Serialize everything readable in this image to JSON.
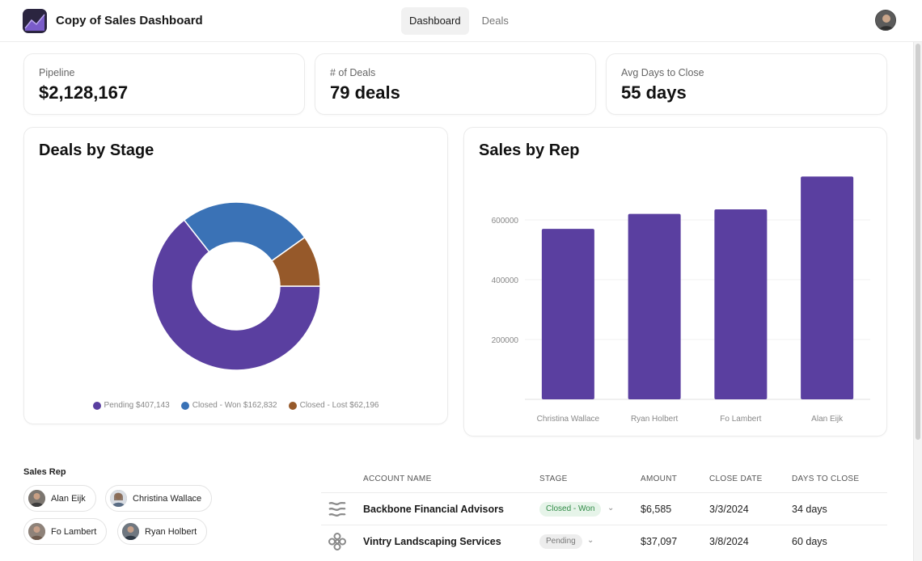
{
  "app": {
    "title": "Copy of Sales Dashboard"
  },
  "nav": {
    "tabs": [
      {
        "label": "Dashboard",
        "active": true
      },
      {
        "label": "Deals",
        "active": false
      }
    ]
  },
  "kpis": [
    {
      "label": "Pipeline",
      "value": "$2,128,167"
    },
    {
      "label": "# of Deals",
      "value": "79 deals"
    },
    {
      "label": "Avg Days to Close",
      "value": "55 days"
    }
  ],
  "deals_by_stage": {
    "title": "Deals by Stage",
    "legend": [
      {
        "label": "Pending $407,143",
        "color": "#5a3fa0"
      },
      {
        "label": "Closed - Won $162,832",
        "color": "#3a72b6"
      },
      {
        "label": "Closed - Lost $62,196",
        "color": "#96592a"
      }
    ]
  },
  "sales_by_rep": {
    "title": "Sales by Rep"
  },
  "chart_data": [
    {
      "type": "pie",
      "title": "Deals by Stage",
      "categories": [
        "Pending",
        "Closed - Won",
        "Closed - Lost"
      ],
      "values": [
        407143,
        162832,
        62196
      ],
      "colors": [
        "#5a3fa0",
        "#3a72b6",
        "#96592a"
      ],
      "donut": true,
      "legend_position": "bottom"
    },
    {
      "type": "bar",
      "title": "Sales by Rep",
      "categories": [
        "Christina Wallace",
        "Ryan Holbert",
        "Fo Lambert",
        "Alan Eijk"
      ],
      "values": [
        570000,
        620000,
        635000,
        745000
      ],
      "color": "#5a3fa0",
      "ylim": [
        0,
        800000
      ],
      "yticks": [
        200000,
        400000,
        600000
      ],
      "ytick_labels": [
        "200000",
        "400000",
        "600000"
      ],
      "grid": true
    }
  ],
  "filters": {
    "label": "Sales Rep",
    "reps": [
      "Alan Eijk",
      "Christina Wallace",
      "Fo Lambert",
      "Ryan Holbert"
    ]
  },
  "table": {
    "headers": [
      "ACCOUNT NAME",
      "STAGE",
      "AMOUNT",
      "CLOSE DATE",
      "DAYS TO CLOSE"
    ],
    "rows": [
      {
        "account": "Backbone Financial Advisors",
        "stage": "Closed - Won",
        "amount": "$6,585",
        "close_date": "3/3/2024",
        "days": "34 days",
        "icon": "wave-logo-icon"
      },
      {
        "account": "Vintry Landscaping Services",
        "stage": "Pending",
        "amount": "$37,097",
        "close_date": "3/8/2024",
        "days": "60 days",
        "icon": "flower-logo-icon"
      }
    ]
  }
}
